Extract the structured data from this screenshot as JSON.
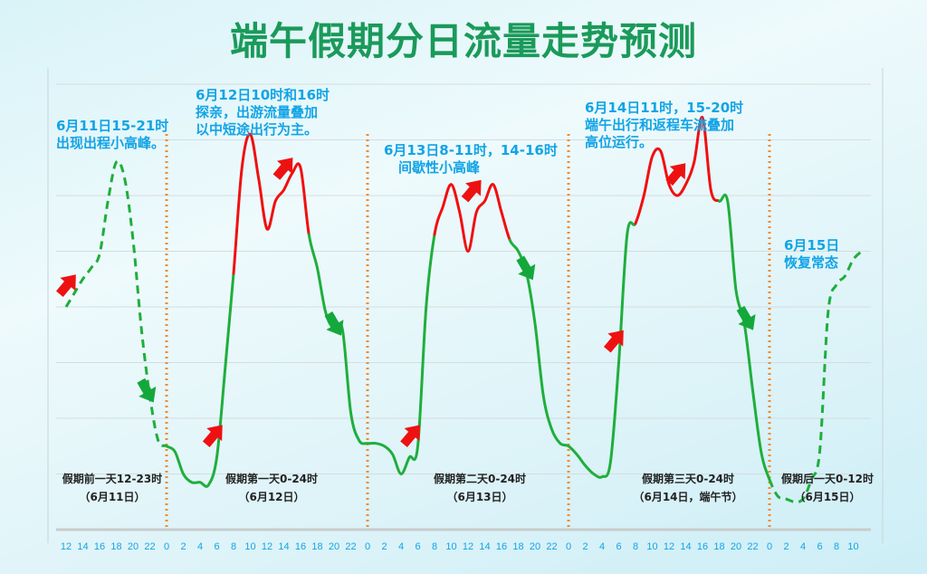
{
  "chart_data": {
    "type": "line",
    "title": "端午假期分日流量走势预测",
    "xlabel": "",
    "ylabel": "",
    "grid": true,
    "y_axis_labels_shown": false,
    "ylim": [
      0,
      8
    ],
    "x_tick_labels": [
      "12",
      "14",
      "16",
      "18",
      "20",
      "22",
      "0",
      "2",
      "4",
      "6",
      "8",
      "10",
      "12",
      "14",
      "16",
      "18",
      "20",
      "22",
      "0",
      "2",
      "4",
      "6",
      "8",
      "10",
      "12",
      "14",
      "16",
      "18",
      "20",
      "22",
      "0",
      "2",
      "4",
      "6",
      "8",
      "10",
      "12",
      "14",
      "16",
      "18",
      "20",
      "22",
      "0",
      "2",
      "4",
      "6",
      "8",
      "10"
    ],
    "start": {
      "date": "6月11日",
      "hour": 12
    },
    "hourly_values": [
      4.0,
      4.25,
      4.5,
      4.7,
      4.95,
      5.9,
      6.6,
      6.3,
      5.2,
      3.6,
      2.4,
      1.6,
      1.5,
      1.4,
      1.0,
      0.85,
      0.85,
      0.8,
      1.3,
      2.9,
      4.6,
      6.5,
      7.1,
      6.3,
      5.4,
      5.9,
      6.1,
      6.4,
      6.5,
      5.3,
      4.7,
      3.9,
      3.6,
      3.6,
      2.1,
      1.6,
      1.55,
      1.55,
      1.5,
      1.35,
      1.0,
      1.3,
      1.5,
      4.0,
      5.3,
      5.8,
      6.2,
      5.7,
      5.0,
      5.7,
      5.9,
      6.2,
      5.7,
      5.2,
      5.0,
      4.6,
      3.7,
      2.4,
      1.8,
      1.55,
      1.5,
      1.35,
      1.15,
      1.0,
      0.95,
      1.2,
      3.0,
      5.3,
      5.5,
      6.0,
      6.7,
      6.8,
      6.2,
      6.0,
      6.2,
      6.6,
      7.4,
      6.1,
      5.9,
      5.9,
      4.3,
      3.7,
      2.5,
      1.4,
      0.9,
      0.6,
      0.55,
      0.5,
      0.55,
      0.9,
      1.4,
      3.9,
      4.4,
      4.55,
      4.85,
      5.0
    ],
    "segments": [
      {
        "from_hour_index": 0,
        "to_hour_index": 12,
        "style": "dashed",
        "color": "#1fae3c",
        "meaning": "forecast outside holiday"
      },
      {
        "from_hour_index": 12,
        "to_hour_index": 20,
        "style": "solid",
        "color": "#1fae3c"
      },
      {
        "from_hour_index": 20,
        "to_hour_index": 29,
        "style": "solid",
        "color": "#f01010"
      },
      {
        "from_hour_index": 29,
        "to_hour_index": 44,
        "style": "solid",
        "color": "#1fae3c"
      },
      {
        "from_hour_index": 44,
        "to_hour_index": 53,
        "style": "solid",
        "color": "#f01010"
      },
      {
        "from_hour_index": 53,
        "to_hour_index": 68,
        "style": "solid",
        "color": "#1fae3c"
      },
      {
        "from_hour_index": 68,
        "to_hour_index": 78,
        "style": "solid",
        "color": "#f01010"
      },
      {
        "from_hour_index": 78,
        "to_hour_index": 84,
        "style": "solid",
        "color": "#1fae3c"
      },
      {
        "from_hour_index": 84,
        "to_hour_index": 95,
        "style": "dashed",
        "color": "#1fae3c"
      }
    ],
    "day_separators_hour_index": [
      12,
      36,
      60,
      84
    ],
    "up_arrows_hour_index": [
      0.2,
      17.7,
      26.1,
      41.3,
      48.6,
      65.6,
      73
    ],
    "down_arrows_hour_index": [
      9.7,
      32.1,
      55,
      81.3
    ],
    "annotations": [
      {
        "lines": [
          "6月11日15-21时",
          "出现出程小高峰。"
        ]
      },
      {
        "lines": [
          "6月12日10时和16时",
          "探亲，出游流量叠加",
          "以中短途出行为主。"
        ]
      },
      {
        "lines": [
          "6月13日8-11时，14-16时",
          "间歇性小高峰"
        ]
      },
      {
        "lines": [
          "6月14日11时，15-20时",
          "端午出行和返程车流叠加",
          "高位运行。"
        ]
      },
      {
        "lines": [
          "6月15日",
          "恢复常态"
        ]
      }
    ],
    "day_labels": [
      {
        "name": "假期前一天12-23时",
        "date": "（6月11日）"
      },
      {
        "name": "假期第一天0-24时",
        "date": "（6月12日）"
      },
      {
        "name": "假期第二天0-24时",
        "date": "（6月13日）"
      },
      {
        "name": "假期第三天0-24时",
        "date": "（6月14日，端午节）"
      },
      {
        "name": "假期后一天0-12时",
        "date": "（6月15日）"
      }
    ],
    "colors": {
      "title": "#1a9a5a",
      "annotation": "#12a4e6",
      "peak": "#f01010",
      "normal": "#1fae3c",
      "separator": "#f08a30",
      "tick": "#12a4e6"
    }
  }
}
